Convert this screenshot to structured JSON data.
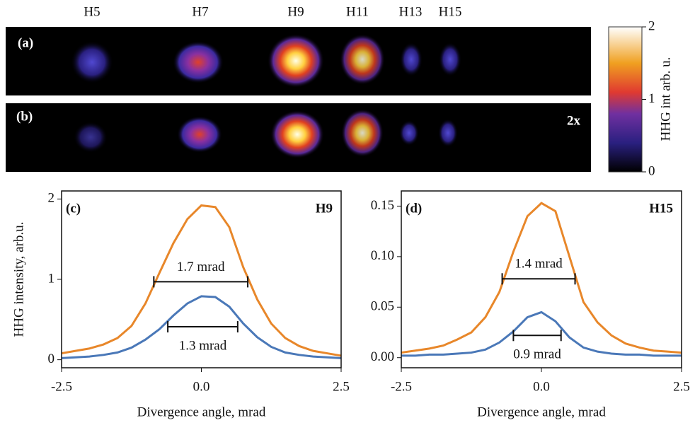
{
  "images": {
    "harmonics": [
      "H5",
      "H7",
      "H9",
      "H11",
      "H13",
      "H15"
    ],
    "panels": [
      "(a)",
      "(b)"
    ],
    "scale_note": "2x",
    "colorbar": {
      "label": "HHG int arb. u.",
      "lim": [
        0,
        2
      ],
      "ticks": [
        0,
        1,
        2
      ]
    }
  },
  "chart_data": [
    {
      "type": "line",
      "panel_label": "(c)",
      "annotation": "H9",
      "ylabel": "HHG intensity, arb.u.",
      "xlabel": "Divergence angle, mrad",
      "x": [
        -2.5,
        -2.25,
        -2.0,
        -1.75,
        -1.5,
        -1.25,
        -1.0,
        -0.75,
        -0.5,
        -0.25,
        0,
        0.25,
        0.5,
        0.75,
        1.0,
        1.25,
        1.5,
        1.75,
        2.0,
        2.25,
        2.5
      ],
      "series": [
        {
          "color": "#e8872a",
          "values": [
            0.08,
            0.11,
            0.14,
            0.19,
            0.27,
            0.42,
            0.7,
            1.08,
            1.45,
            1.75,
            1.92,
            1.9,
            1.65,
            1.15,
            0.75,
            0.45,
            0.27,
            0.17,
            0.11,
            0.08,
            0.05
          ]
        },
        {
          "color": "#4a78b8",
          "values": [
            0.02,
            0.03,
            0.04,
            0.06,
            0.09,
            0.15,
            0.25,
            0.38,
            0.55,
            0.7,
            0.79,
            0.78,
            0.66,
            0.45,
            0.28,
            0.16,
            0.09,
            0.06,
            0.04,
            0.03,
            0.02
          ]
        }
      ],
      "annotations": [
        {
          "text": "1.7 mrad",
          "x": [
            -0.85,
            0.83
          ],
          "y": 0.97
        },
        {
          "text": "1.3 mrad",
          "x": [
            -0.6,
            0.65
          ],
          "y": 0.41
        }
      ],
      "xlim": [
        -2.5,
        2.5
      ],
      "xticks": [
        -2.5,
        {
          "value": 0,
          "label": "0.0"
        },
        2.5
      ],
      "ylim": [
        -0.1,
        2.1
      ],
      "yticks": [
        0,
        1,
        2
      ]
    },
    {
      "type": "line",
      "panel_label": "(d)",
      "annotation": "H15",
      "xlabel": "Divergence angle, mrad",
      "x": [
        -2.5,
        -2.25,
        -2.0,
        -1.75,
        -1.5,
        -1.25,
        -1.0,
        -0.75,
        -0.5,
        -0.25,
        0,
        0.25,
        0.5,
        0.75,
        1.0,
        1.25,
        1.5,
        1.75,
        2.0,
        2.25,
        2.5
      ],
      "series": [
        {
          "color": "#e8872a",
          "values": [
            0.005,
            0.007,
            0.009,
            0.012,
            0.018,
            0.025,
            0.04,
            0.065,
            0.105,
            0.14,
            0.153,
            0.145,
            0.1,
            0.055,
            0.035,
            0.022,
            0.014,
            0.01,
            0.007,
            0.006,
            0.005
          ]
        },
        {
          "color": "#4a78b8",
          "values": [
            0.002,
            0.002,
            0.003,
            0.003,
            0.004,
            0.005,
            0.008,
            0.015,
            0.026,
            0.04,
            0.045,
            0.036,
            0.02,
            0.01,
            0.006,
            0.004,
            0.003,
            0.003,
            0.002,
            0.002,
            0.002
          ]
        }
      ],
      "annotations": [
        {
          "text": "1.4 mrad",
          "x": [
            -0.7,
            0.6
          ],
          "y": 0.078
        },
        {
          "text": "0.9 mrad",
          "x": [
            -0.5,
            0.35
          ],
          "y": 0.022
        }
      ],
      "xlim": [
        -2.5,
        2.5
      ],
      "xticks": [
        -2.5,
        {
          "value": 0,
          "label": "0.0"
        },
        2.5
      ],
      "ylim": [
        -0.01,
        0.165
      ],
      "yticks": [
        {
          "value": 0,
          "label": "0.00"
        },
        {
          "value": 0.05,
          "label": "0.05"
        },
        {
          "value": 0.1,
          "label": "0.10"
        },
        {
          "value": 0.15,
          "label": "0.15"
        }
      ]
    }
  ]
}
